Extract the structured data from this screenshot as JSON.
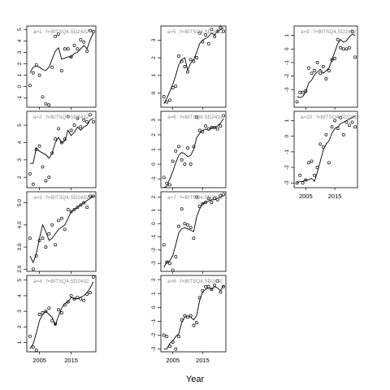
{
  "chart_data": {
    "type": "scatter",
    "xlabel": "Year",
    "x": [
      2002,
      2003,
      2004,
      2005,
      2006,
      2007,
      2008,
      2009,
      2010,
      2011,
      2012,
      2013,
      2014,
      2015,
      2016,
      2017,
      2018,
      2019,
      2020,
      2021,
      2022
    ],
    "xticks": [
      2005,
      2015
    ],
    "panels": [
      {
        "label": "a=1 : f=BITSQ4.SD2432",
        "ylim": [
          -1.8,
          5.3
        ],
        "yticks": [
          -1,
          0,
          1,
          2,
          3,
          4,
          5
        ],
        "points": [
          0.1,
          1.2,
          1.9,
          1.0,
          -0.9,
          -1.5,
          -1.6,
          1.7,
          4.4,
          4.6,
          1.4,
          3.3,
          3.3,
          2.6,
          3.6,
          3.3,
          4.1,
          3.9,
          3.1,
          4.9,
          4.8
        ],
        "fitted": [
          1.2,
          1.7,
          1.8,
          1.7,
          1.5,
          1.4,
          1.7,
          2.4,
          3.1,
          3.4,
          2.4,
          2.5,
          2.6,
          2.6,
          2.9,
          3.0,
          3.3,
          3.6,
          3.3,
          4.1,
          4.7
        ]
      },
      {
        "label": "a=2 : f=BITSQ4.SD2432",
        "ylim": [
          1.4,
          5.8
        ],
        "yticks": [
          2,
          3,
          4,
          5
        ],
        "points": [
          2.2,
          1.6,
          3.6,
          3.8,
          2.6,
          1.8,
          2.0,
          3.4,
          4.2,
          4.8,
          4.0,
          4.2,
          5.5,
          4.7,
          5.0,
          5.4,
          4.9,
          5.3,
          5.2,
          5.6,
          5.2
        ],
        "fitted": [
          2.8,
          2.8,
          3.7,
          3.5,
          3.4,
          3.3,
          3.1,
          3.4,
          4.0,
          4.3,
          4.0,
          4.1,
          4.7,
          4.4,
          4.6,
          4.9,
          4.7,
          4.9,
          5.0,
          5.3,
          5.4
        ]
      },
      {
        "label": "a=3 : f=BITSQ4.SD2432",
        "ylim": [
          1.9,
          5.5
        ],
        "yticks": [
          2.0,
          3.0,
          4.0,
          5.0
        ],
        "ytickfmt": 1,
        "points": [
          3.4,
          2.0,
          2.6,
          3.3,
          3.4,
          3.0,
          3.6,
          4.0,
          3.1,
          4.2,
          4.3,
          3.8,
          4.7,
          4.6,
          4.7,
          4.8,
          4.9,
          5.0,
          4.8,
          5.3,
          5.3
        ],
        "fitted": [
          2.6,
          2.3,
          2.7,
          3.4,
          4.0,
          3.7,
          3.3,
          3.4,
          3.6,
          3.8,
          3.9,
          4.0,
          4.3,
          4.6,
          4.7,
          4.8,
          4.9,
          5.0,
          5.1,
          5.2,
          5.3
        ]
      },
      {
        "label": "a=4 : f=BITSQ4.SD2432",
        "ylim": [
          0.4,
          5.3
        ],
        "yticks": [
          1,
          2,
          3,
          4,
          5
        ],
        "points": [
          1.4,
          0.7,
          0.5,
          2.8,
          2.9,
          3.0,
          3.2,
          2.4,
          2.2,
          3.1,
          2.9,
          3.4,
          3.6,
          4.0,
          3.8,
          3.9,
          3.8,
          3.7,
          4.1,
          4.2,
          5.2
        ],
        "fitted": [
          0.6,
          0.9,
          1.6,
          2.4,
          2.8,
          3.0,
          2.8,
          2.6,
          2.1,
          2.7,
          3.2,
          3.5,
          3.6,
          3.9,
          3.8,
          3.8,
          3.9,
          4.0,
          4.2,
          4.5,
          4.9
        ]
      },
      {
        "label": "a=5 : f=BITSQ4.SD2432",
        "ylim": [
          -0.8,
          3.8
        ],
        "yticks": [
          0,
          1,
          2,
          3
        ],
        "points": [
          -0.2,
          -0.5,
          -0.4,
          0.3,
          0.4,
          2.1,
          1.8,
          1.5,
          1.2,
          1.9,
          1.8,
          2.0,
          3.4,
          2.9,
          3.3,
          2.8,
          3.6,
          3.2,
          3.5,
          3.7,
          3.5
        ],
        "fitted": [
          -0.6,
          -0.3,
          0.1,
          0.5,
          1.0,
          1.6,
          1.9,
          2.0,
          1.3,
          1.7,
          1.9,
          2.3,
          2.8,
          3.0,
          3.1,
          3.2,
          3.4,
          3.3,
          3.5,
          3.6,
          3.7
        ]
      },
      {
        "label": "a=6 : f=BITSQ4.SD2432",
        "ylim": [
          -1.6,
          3.6
        ],
        "yticks": [
          -1,
          0,
          1,
          2,
          3
        ],
        "points": [
          -0.9,
          -1.3,
          -1.4,
          0.2,
          0.9,
          1.2,
          0.3,
          0.0,
          1.1,
          0.0,
          1.2,
          3.2,
          2.3,
          2.2,
          2.6,
          2.4,
          2.5,
          2.5,
          2.4,
          2.6,
          3.3
        ],
        "fitted": [
          -1.6,
          -1.5,
          -1.0,
          -0.5,
          0.1,
          0.6,
          0.8,
          0.7,
          0.5,
          0.6,
          1.0,
          1.8,
          2.1,
          2.3,
          2.4,
          2.3,
          2.5,
          2.5,
          2.6,
          2.8,
          3.1
        ]
      },
      {
        "label": "a=7 : f=BITSQ4.SD2432",
        "ylim": [
          -3.6,
          2.4
        ],
        "yticks": [
          -3,
          -2,
          -1,
          0,
          1,
          2
        ],
        "points": [
          -1.6,
          -2.9,
          -3.0,
          -3.5,
          -2.5,
          -0.2,
          1.1,
          0.0,
          -0.1,
          -0.3,
          -1.1,
          2.0,
          1.3,
          1.5,
          1.6,
          1.9,
          1.6,
          1.9,
          1.8,
          2.1,
          2.2
        ],
        "fitted": [
          -3.3,
          -2.9,
          -2.8,
          -2.4,
          -1.6,
          -0.7,
          -0.4,
          -0.3,
          -0.4,
          -0.5,
          -0.6,
          0.5,
          1.1,
          1.5,
          1.6,
          1.7,
          1.8,
          1.8,
          1.9,
          2.0,
          2.1
        ]
      },
      {
        "label": "a=8 : f=BITSQ4.SD2432",
        "ylim": [
          -3.2,
          2.3
        ],
        "yticks": [
          -3,
          -2,
          -1,
          0,
          1,
          2
        ],
        "points": [
          -2.0,
          -2.1,
          -2.8,
          -2.5,
          -3.0,
          -2.1,
          -0.9,
          -0.6,
          -0.7,
          -0.6,
          -1.3,
          -1.1,
          0.7,
          1.2,
          1.5,
          1.5,
          1.3,
          1.6,
          1.9,
          1.1,
          1.5
        ],
        "fitted": [
          -3.0,
          -3.0,
          -2.6,
          -2.4,
          -2.1,
          -1.9,
          -1.1,
          -0.7,
          -0.6,
          -0.7,
          -0.9,
          -0.6,
          0.5,
          1.1,
          1.3,
          1.4,
          1.3,
          1.5,
          1.4,
          1.2,
          1.6
        ]
      },
      {
        "label": "a=9 : f=BITSQ4.SD2432",
        "ylim": [
          -4.3,
          1.7
        ],
        "yticks": [
          -3,
          -2,
          -1,
          0,
          1
        ],
        "points": [
          -3.9,
          -3.2,
          -3.2,
          -3.1,
          -1.4,
          -1.8,
          -1.6,
          -1.0,
          -1.8,
          -1.3,
          -2.2,
          -1.6,
          -0.8,
          -0.7,
          0.7,
          0.1,
          0.0,
          0.0,
          0.1,
          1.3,
          -0.6
        ],
        "fitted": [
          -3.5,
          -3.6,
          -3.5,
          -3.2,
          -2.5,
          -2.3,
          -1.9,
          -1.7,
          -1.5,
          -1.8,
          -1.6,
          -1.4,
          -0.8,
          -0.2,
          0.4,
          0.7,
          0.5,
          0.6,
          0.9,
          1.1,
          1.0
        ]
      },
      {
        "label": "a=10 : f=BITSQ4.SD2432",
        "ylim": [
          -3.3,
          1.6
        ],
        "yticks": [
          -3,
          -2,
          -1,
          0,
          1
        ],
        "points": [
          -3.0,
          -2.5,
          -3.0,
          -2.8,
          -1.7,
          -1.6,
          -2.5,
          -2.0,
          -0.5,
          -0.7,
          0.1,
          -1.7,
          0.6,
          1.0,
          0.5,
          1.2,
          0.1,
          0.9,
          0.7,
          0.9,
          0.6
        ],
        "fitted": [
          -3.0,
          -2.9,
          -2.9,
          -2.8,
          -2.8,
          -2.7,
          -2.9,
          -2.3,
          -1.6,
          -0.9,
          -0.5,
          -0.3,
          0.2,
          0.5,
          0.6,
          0.8,
          0.9,
          1.0,
          1.1,
          1.2,
          1.3
        ]
      }
    ]
  }
}
